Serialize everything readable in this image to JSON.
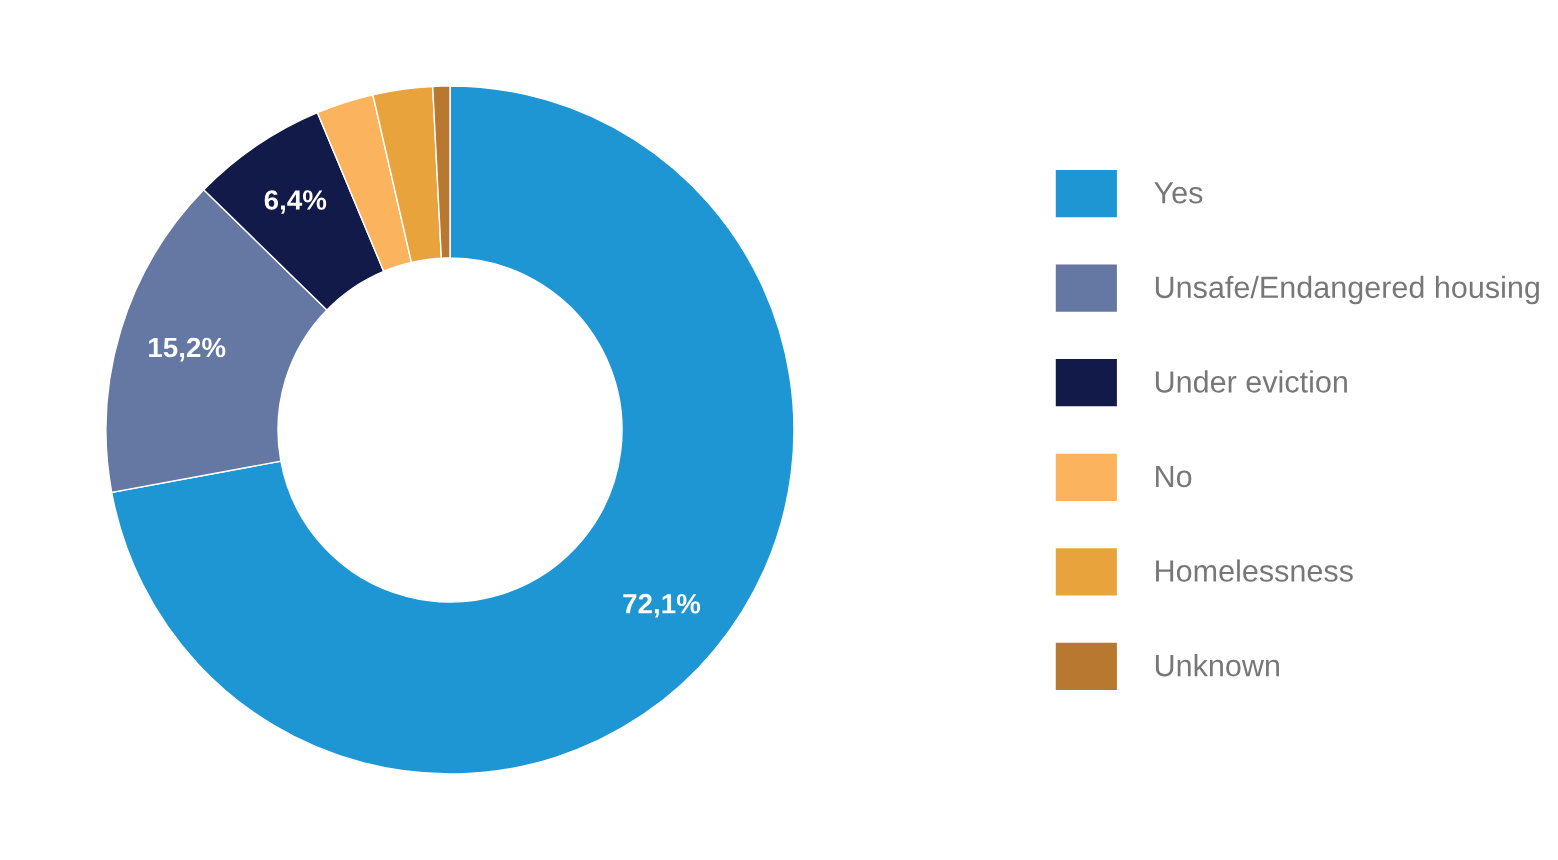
{
  "chart_data": {
    "type": "donut",
    "categories": [
      "Yes",
      "Unsafe/Endangered housing",
      "Under eviction",
      "No",
      "Homelessness",
      "Unknown"
    ],
    "values": [
      72.1,
      15.2,
      6.4,
      2.7,
      2.8,
      0.8
    ],
    "colors": [
      "#1e96d3",
      "#6577a3",
      "#121a4a",
      "#fbb35e",
      "#e8a33c",
      "#b8782f"
    ],
    "value_labels": [
      "72,1%",
      "15,2%",
      "6,4%",
      null,
      null,
      null
    ],
    "legend": "right"
  }
}
